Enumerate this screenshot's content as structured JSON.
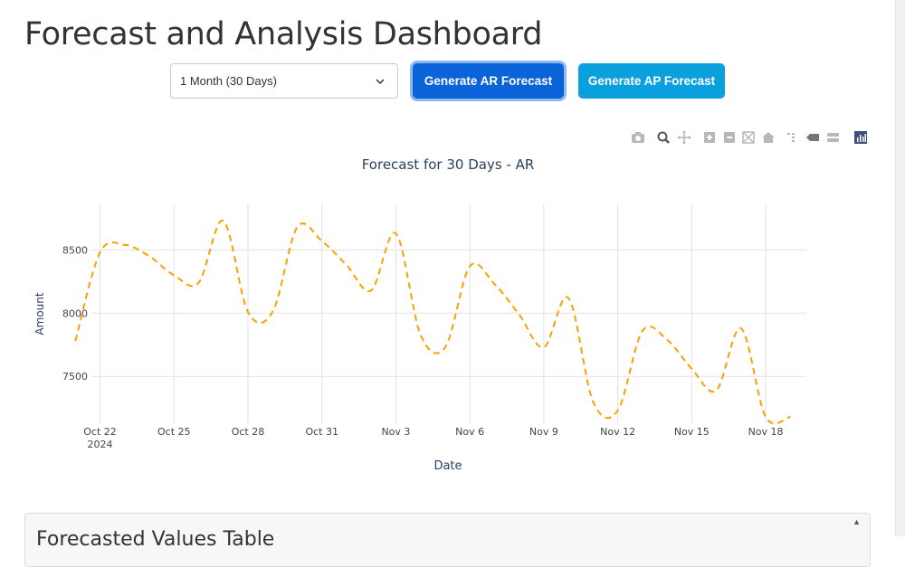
{
  "header": {
    "title": "Forecast and Analysis Dashboard"
  },
  "controls": {
    "period_select": {
      "value": "1 Month (30 Days)"
    },
    "ar_button_label": "Generate AR Forecast",
    "ap_button_label": "Generate AP Forecast"
  },
  "modebar": {
    "icons": [
      "camera-icon",
      "zoom-icon",
      "pan-icon",
      "zoom-in-icon",
      "zoom-out-icon",
      "autoscale-icon",
      "reset-axes-icon",
      "spike-lines-icon",
      "hover-closest-icon",
      "hover-compare-icon",
      "plotly-logo-icon"
    ]
  },
  "colors": {
    "line": "#f5a300",
    "ar_button": "#0b63d9",
    "ap_button": "#0aa0de"
  },
  "chart_data": {
    "type": "line",
    "title": "Forecast for 30 Days - AR",
    "xlabel": "Date",
    "ylabel": "Amount",
    "x_ticks": [
      "Oct 22",
      "Oct 25",
      "Oct 28",
      "Oct 31",
      "Nov 3",
      "Nov 6",
      "Nov 9",
      "Nov 12",
      "Nov 15",
      "Nov 18"
    ],
    "x_year_label": "2024",
    "y_ticks": [
      7500,
      8000,
      8500
    ],
    "x_range": [
      "2024-10-21.65",
      "2024-11-19.65"
    ],
    "y_range": [
      7130,
      8860
    ],
    "grid": true,
    "line_style": "dashed",
    "series": [
      {
        "x": [
          "2024-10-21",
          "2024-10-22",
          "2024-10-23",
          "2024-10-24",
          "2024-10-25",
          "2024-10-26",
          "2024-10-27",
          "2024-10-28",
          "2024-10-29",
          "2024-10-30",
          "2024-10-31",
          "2024-11-01",
          "2024-11-02",
          "2024-11-03",
          "2024-11-04",
          "2024-11-05",
          "2024-11-06",
          "2024-11-07",
          "2024-11-08",
          "2024-11-09",
          "2024-11-10",
          "2024-11-11",
          "2024-11-12",
          "2024-11-13",
          "2024-11-14",
          "2024-11-15",
          "2024-11-16",
          "2024-11-17",
          "2024-11-18",
          "2024-11-19"
        ],
        "y": [
          7780,
          8480,
          8540,
          8450,
          8300,
          8240,
          8730,
          8010,
          8010,
          8680,
          8570,
          8380,
          8180,
          8630,
          7830,
          7730,
          8370,
          8230,
          7990,
          7730,
          8120,
          7300,
          7230,
          7860,
          7790,
          7560,
          7390,
          7880,
          7180,
          7180
        ]
      }
    ]
  },
  "table_card": {
    "title": "Forecasted Values Table"
  }
}
